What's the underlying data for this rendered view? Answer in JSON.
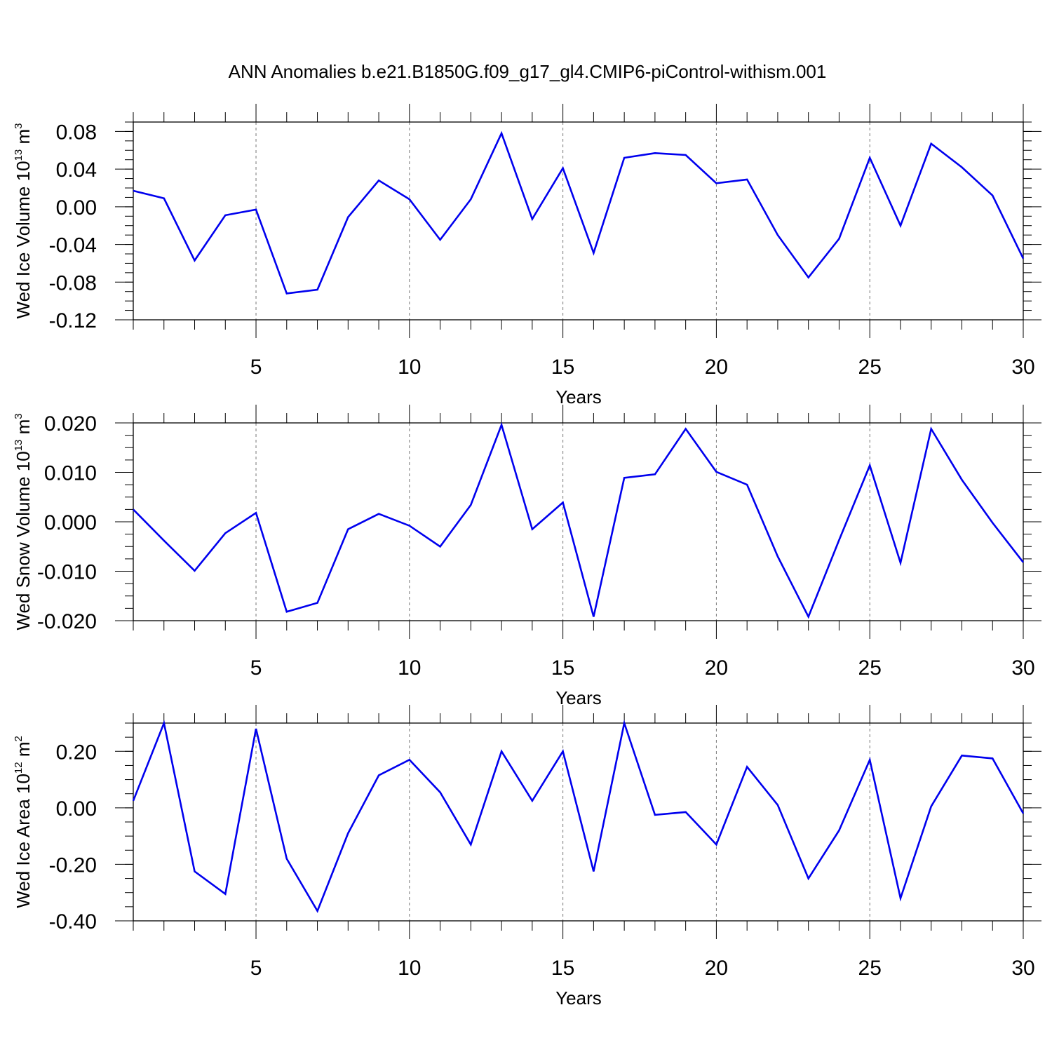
{
  "figure": {
    "title": "ANN Anomalies b.e21.B1850G.f09_g17_gl4.CMIP6-piControl-withism.001",
    "line_color": "#0000ee"
  },
  "chart_data": [
    {
      "type": "line",
      "ylabel": {
        "text": "Wed Ice Volume 10",
        "exp": "13",
        "unit": " m",
        "unit_exp": "3"
      },
      "xlabel": "Years",
      "xlim": [
        1,
        30
      ],
      "ylim": [
        -0.12,
        0.09
      ],
      "xticks": [
        5,
        10,
        15,
        20,
        25,
        30
      ],
      "xtick_labels": [
        "5",
        "10",
        "15",
        "20",
        "25",
        "30"
      ],
      "yticks": [
        -0.12,
        -0.08,
        -0.04,
        0.0,
        0.04,
        0.08
      ],
      "ytick_labels": [
        "-0.12",
        "-0.08",
        "-0.04",
        "0.00",
        "0.04",
        "0.08"
      ],
      "yminor_step": 0.01,
      "grid": "dashed vertical at major x ticks",
      "x": [
        1,
        2,
        3,
        4,
        5,
        6,
        7,
        8,
        9,
        10,
        11,
        12,
        13,
        14,
        15,
        16,
        17,
        18,
        19,
        20,
        21,
        22,
        23,
        24,
        25,
        26,
        27,
        28,
        29,
        30
      ],
      "y": [
        0.017,
        0.009,
        -0.057,
        -0.009,
        -0.003,
        -0.092,
        -0.088,
        -0.011,
        0.028,
        0.008,
        -0.035,
        0.008,
        0.078,
        -0.013,
        0.041,
        -0.049,
        0.052,
        0.057,
        0.055,
        0.025,
        0.029,
        -0.03,
        -0.075,
        -0.034,
        0.052,
        -0.02,
        0.067,
        0.042,
        0.012,
        -0.055
      ]
    },
    {
      "type": "line",
      "ylabel": {
        "text": "Wed Snow Volume 10",
        "exp": "13",
        "unit": " m",
        "unit_exp": "3"
      },
      "xlabel": "Years",
      "xlim": [
        1,
        30
      ],
      "ylim": [
        -0.02,
        0.02
      ],
      "xticks": [
        5,
        10,
        15,
        20,
        25,
        30
      ],
      "xtick_labels": [
        "5",
        "10",
        "15",
        "20",
        "25",
        "30"
      ],
      "yticks": [
        -0.02,
        -0.01,
        0.0,
        0.01,
        0.02
      ],
      "ytick_labels": [
        "-0.020",
        "-0.010",
        "0.000",
        "0.010",
        "0.020"
      ],
      "yminor_step": 0.0025,
      "grid": "dashed vertical at major x ticks",
      "x": [
        1,
        2,
        3,
        4,
        5,
        6,
        7,
        8,
        9,
        10,
        11,
        12,
        13,
        14,
        15,
        16,
        17,
        18,
        19,
        20,
        21,
        22,
        23,
        24,
        25,
        26,
        27,
        28,
        29,
        30
      ],
      "y": [
        0.0025,
        -0.0038,
        -0.0099,
        -0.0023,
        0.0018,
        -0.0182,
        -0.0164,
        -0.0015,
        0.0016,
        -0.0008,
        -0.005,
        0.0034,
        0.0196,
        -0.0015,
        0.0039,
        -0.0192,
        0.0089,
        0.0096,
        0.0188,
        0.0101,
        0.0075,
        -0.007,
        -0.0192,
        -0.0037,
        0.0114,
        -0.0083,
        0.0188,
        0.0085,
        -0.0002,
        -0.0082
      ]
    },
    {
      "type": "line",
      "ylabel": {
        "text": "Wed Ice Area 10",
        "exp": "12",
        "unit": " m",
        "unit_exp": "2"
      },
      "xlabel": "Years",
      "xlim": [
        1,
        30
      ],
      "ylim": [
        -0.4,
        0.3
      ],
      "xticks": [
        5,
        10,
        15,
        20,
        25,
        30
      ],
      "xtick_labels": [
        "5",
        "10",
        "15",
        "20",
        "25",
        "30"
      ],
      "yticks": [
        -0.4,
        -0.2,
        0.0,
        0.2
      ],
      "ytick_labels": [
        "-0.40",
        "-0.20",
        "0.00",
        "0.20"
      ],
      "yminor_step": 0.05,
      "grid": "dashed vertical at major x ticks",
      "x": [
        1,
        2,
        3,
        4,
        5,
        6,
        7,
        8,
        9,
        10,
        11,
        12,
        13,
        14,
        15,
        16,
        17,
        18,
        19,
        20,
        21,
        22,
        23,
        24,
        25,
        26,
        27,
        28,
        29,
        30
      ],
      "y": [
        0.025,
        0.3,
        -0.225,
        -0.305,
        0.28,
        -0.18,
        -0.365,
        -0.09,
        0.115,
        0.17,
        0.055,
        -0.13,
        0.2,
        0.025,
        0.2,
        -0.225,
        0.3,
        -0.025,
        -0.015,
        -0.13,
        0.145,
        0.01,
        -0.25,
        -0.08,
        0.17,
        -0.32,
        0.005,
        0.185,
        0.175,
        -0.02
      ]
    }
  ]
}
